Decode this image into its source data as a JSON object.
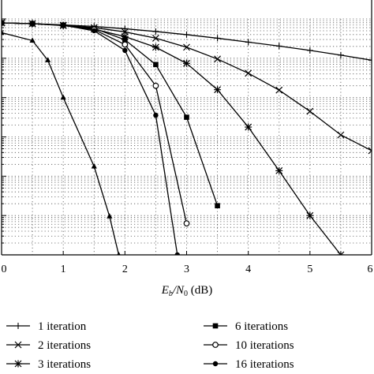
{
  "chart_data": {
    "type": "line",
    "xlabel_main": "E",
    "xlabel_sub1": "b",
    "xlabel_mid": "/N",
    "xlabel_sub2": "0",
    "xlabel_unit": " (dB)",
    "x_ticks": [
      "0",
      "1",
      "2",
      "3",
      "4",
      "5",
      "6"
    ],
    "xlim": [
      0,
      6
    ],
    "ylim_log10": [
      -6,
      0
    ],
    "grid": true,
    "grid_style": "dotted",
    "legend_position": "bottom",
    "series": [
      {
        "name": "1 iteration",
        "marker": "plus",
        "x": [
          0,
          0.5,
          1,
          1.5,
          2,
          2.5,
          3,
          3.5,
          4,
          4.5,
          5,
          5.5,
          6
        ],
        "log10_y": [
          -0.1,
          -0.12,
          -0.15,
          -0.19,
          -0.25,
          -0.32,
          -0.4,
          -0.49,
          -0.59,
          -0.69,
          -0.8,
          -0.92,
          -1.05
        ]
      },
      {
        "name": "2 iterations",
        "marker": "x",
        "x": [
          0,
          0.5,
          1,
          1.5,
          2,
          2.5,
          3,
          3.5,
          4,
          4.5,
          5,
          5.5,
          6
        ],
        "log10_y": [
          -0.1,
          -0.12,
          -0.16,
          -0.22,
          -0.33,
          -0.49,
          -0.72,
          -1.02,
          -1.38,
          -1.81,
          -2.35,
          -2.95,
          -3.35
        ]
      },
      {
        "name": "3 iterations",
        "marker": "asterisk",
        "x": [
          0,
          0.5,
          1,
          1.5,
          2,
          2.5,
          3,
          3.5,
          4,
          4.5,
          5,
          5.5
        ],
        "log10_y": [
          -0.1,
          -0.12,
          -0.17,
          -0.26,
          -0.45,
          -0.72,
          -1.13,
          -1.8,
          -2.75,
          -3.86,
          -5.0,
          -6.0
        ]
      },
      {
        "name": "6 iterations",
        "marker": "square-filled",
        "x": [
          0,
          0.5,
          1,
          1.5,
          2,
          2.5,
          3,
          3.5
        ],
        "log10_y": [
          -0.1,
          -0.12,
          -0.16,
          -0.24,
          -0.53,
          -1.16,
          -2.5,
          -4.75
        ]
      },
      {
        "name": "10 iterations",
        "marker": "circle-open",
        "x": [
          0,
          0.5,
          1,
          1.5,
          2,
          2.5,
          3
        ],
        "log10_y": [
          -0.1,
          -0.12,
          -0.16,
          -0.27,
          -0.65,
          -1.7,
          -5.2
        ]
      },
      {
        "name": "16 iterations",
        "marker": "circle-filled",
        "x": [
          0,
          0.5,
          1,
          1.5,
          2,
          2.5,
          2.85
        ],
        "log10_y": [
          -0.1,
          -0.12,
          -0.16,
          -0.3,
          -0.8,
          -2.45,
          -6.0
        ]
      },
      {
        "name": "",
        "marker": "triangle-filled",
        "x": [
          0,
          0.5,
          0.75,
          1,
          1.5,
          1.75,
          1.9,
          2.0
        ],
        "log10_y": [
          -0.35,
          -0.55,
          -1.05,
          -2.0,
          -3.75,
          -5.02,
          -6.0,
          -6.3
        ]
      }
    ],
    "legend": [
      "1 iteration",
      "2 iterations",
      "3 iterations",
      "6 iterations",
      "10 iterations",
      "16 iterations"
    ]
  }
}
